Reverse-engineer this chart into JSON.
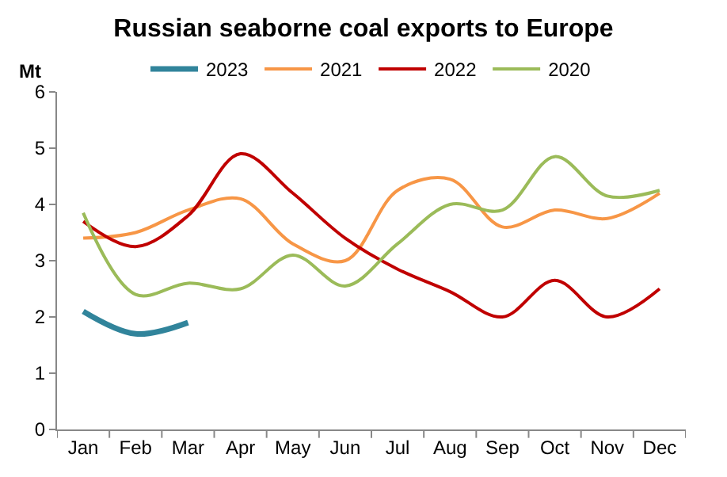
{
  "chart_data": {
    "type": "line",
    "title": "Russian seaborne coal exports to Europe",
    "ylabel": "Mt",
    "categories": [
      "Jan",
      "Feb",
      "Mar",
      "Apr",
      "May",
      "Jun",
      "Jul",
      "Aug",
      "Sep",
      "Oct",
      "Nov",
      "Dec"
    ],
    "series": [
      {
        "name": "2023",
        "color": "#31849b",
        "values": [
          2.1,
          1.7,
          1.9,
          null,
          null,
          null,
          null,
          null,
          null,
          null,
          null,
          null
        ]
      },
      {
        "name": "2021",
        "color": "#f79646",
        "values": [
          3.4,
          3.5,
          3.9,
          4.1,
          3.3,
          3.0,
          4.25,
          4.45,
          3.6,
          3.9,
          3.75,
          4.2
        ]
      },
      {
        "name": "2022",
        "color": "#c00000",
        "values": [
          3.7,
          3.25,
          3.8,
          4.9,
          4.2,
          3.4,
          2.85,
          2.45,
          2.0,
          2.65,
          2.0,
          2.5
        ]
      },
      {
        "name": "2020",
        "color": "#9bbb59",
        "values": [
          3.85,
          2.4,
          2.6,
          2.5,
          3.1,
          2.55,
          3.3,
          4.0,
          3.9,
          4.85,
          4.15,
          4.25
        ]
      }
    ],
    "ylim": [
      0,
      6
    ],
    "yticks": [
      0,
      1,
      2,
      3,
      4,
      5,
      6
    ],
    "legend": "top",
    "marker": "none",
    "line_style": "solid"
  }
}
